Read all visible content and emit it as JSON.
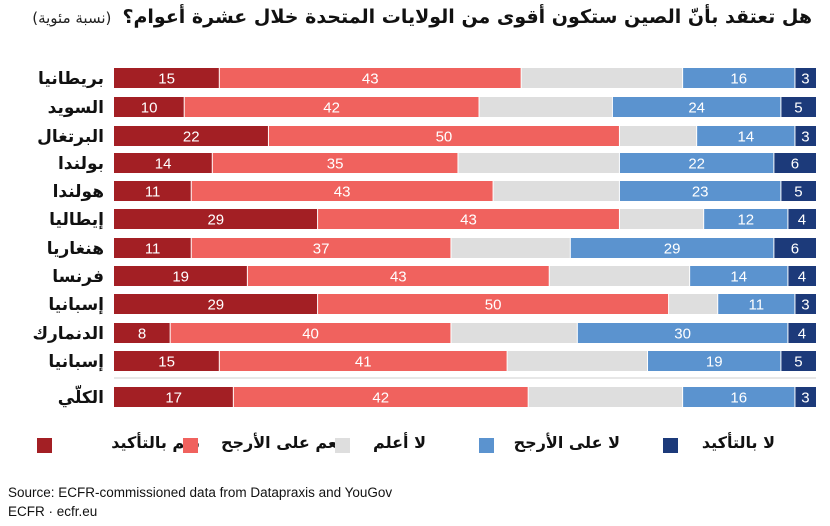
{
  "title": "هل تعتقد بأنّ الصين ستكون أقوى من الولايات المتحدة خلال عشرة أعوام؟",
  "subtitle": "(نسبة مئوية)",
  "source": "Source: ECFR-commissioned data from Datapraxis and YouGov",
  "credit": "ECFR · ecfr.eu",
  "colors": {
    "definitely_yes": "#a31f24",
    "probably_yes": "#f0625e",
    "dont_know": "#dedede",
    "probably_no": "#5b93cf",
    "definitely_no": "#1c3a7a"
  },
  "chart_data": {
    "type": "bar",
    "orientation": "horizontal",
    "stacked": true,
    "normalized_to_100": true,
    "categories": [
      "بريطانيا",
      "السويد",
      "البرتغال",
      "بولندا",
      "هولندا",
      "إيطاليا",
      "هنغاريا",
      "فرنسا",
      "إسبانيا",
      "الدنمارك",
      "إسبانيا",
      "الكلّي"
    ],
    "series": [
      {
        "name": "نعم بالتأكيد",
        "values": [
          15,
          10,
          22,
          14,
          11,
          29,
          11,
          19,
          29,
          8,
          15,
          17
        ]
      },
      {
        "name": "نعم على الأرجح",
        "values": [
          43,
          42,
          50,
          35,
          43,
          43,
          37,
          43,
          50,
          40,
          41,
          42
        ]
      },
      {
        "name": "لا أعلم",
        "values": [
          null,
          null,
          null,
          null,
          null,
          null,
          null,
          null,
          null,
          null,
          null,
          null
        ]
      },
      {
        "name": "لا على الأرجح",
        "values": [
          16,
          24,
          14,
          22,
          23,
          12,
          29,
          14,
          11,
          30,
          19,
          16
        ]
      },
      {
        "name": "لا بالتأكيد",
        "values": [
          3,
          5,
          3,
          6,
          5,
          4,
          6,
          4,
          3,
          4,
          5,
          3
        ]
      }
    ],
    "xlim": [
      0,
      100
    ],
    "legend_position": "bottom",
    "grid": false
  }
}
